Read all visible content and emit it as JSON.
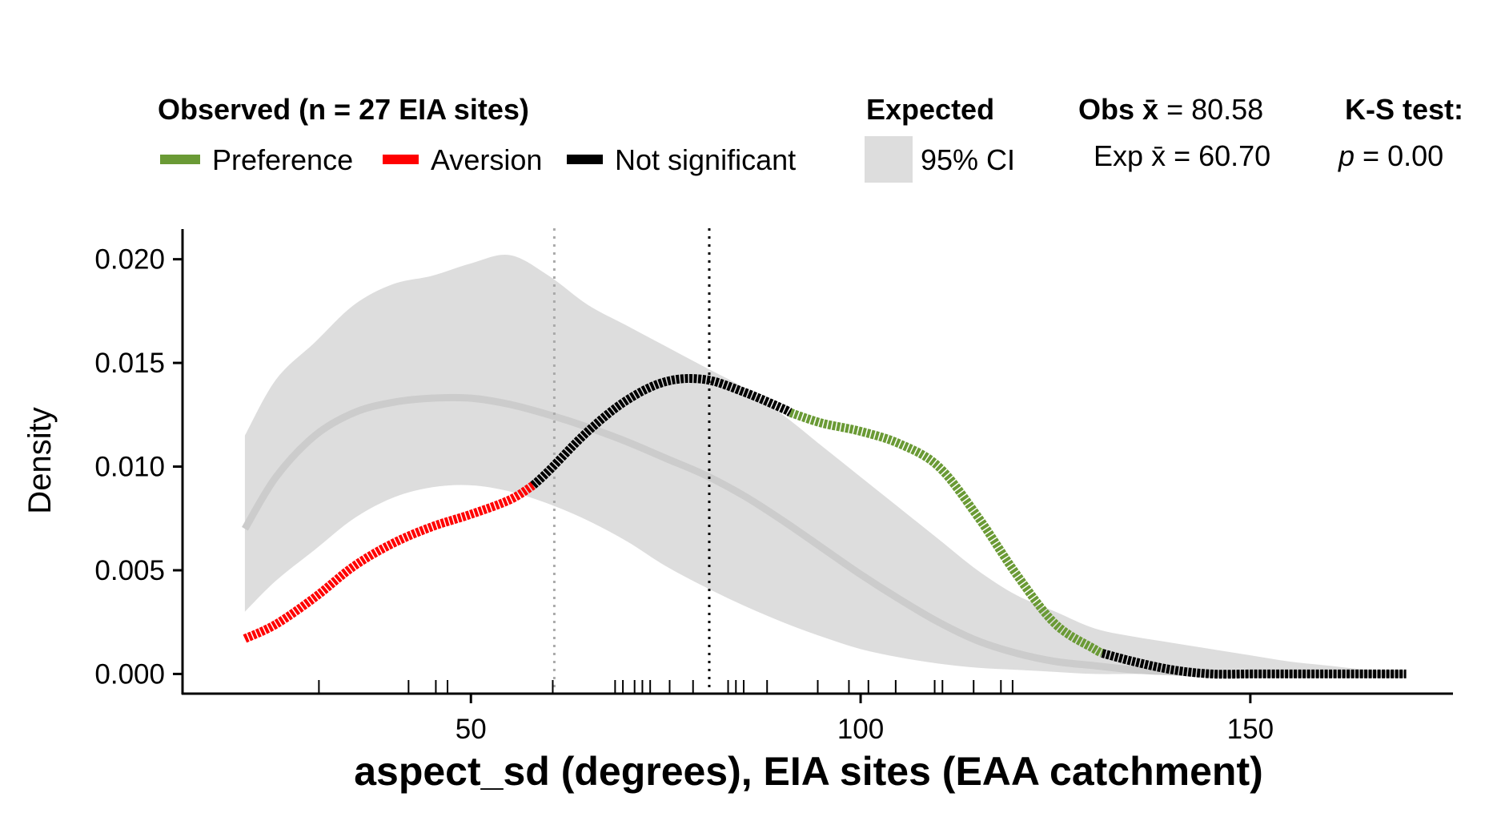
{
  "chart_data": {
    "type": "line",
    "xlabel": "aspect_sd (degrees), EIA sites (EAA catchment)",
    "ylabel": "Density",
    "xlim": [
      13,
      176
    ],
    "ylim": [
      -0.00095,
      0.0213
    ],
    "x_ticks": [
      {
        "value": 50,
        "label": "50"
      },
      {
        "value": 100,
        "label": "100"
      },
      {
        "value": 150,
        "label": "150"
      }
    ],
    "y_ticks": [
      {
        "value": 0.0,
        "label": "0.000"
      },
      {
        "value": 0.005,
        "label": "0.005"
      },
      {
        "value": 0.01,
        "label": "0.010"
      },
      {
        "value": 0.015,
        "label": "0.015"
      },
      {
        "value": 0.02,
        "label": "0.020"
      }
    ],
    "grid": false,
    "legend": {
      "placement": "top",
      "observed_title": "Observed (n = 27 EIA sites)",
      "observed_items": [
        {
          "label": "Preference",
          "color": "#6a9a35"
        },
        {
          "label": "Aversion",
          "color": "#ff0000"
        },
        {
          "label": "Not significant",
          "color": "#000000"
        }
      ],
      "expected_title": "Expected",
      "expected_item": {
        "label": "95% CI",
        "color": "#dddddd"
      },
      "obs_mean_label": "Obs",
      "obs_mean_value": "= 80.58",
      "exp_mean_label": "Exp",
      "exp_mean_value": "= 60.70",
      "xbar_symbol": "x̄",
      "ks_title": "K-S test:",
      "ks_p_symbol": "p",
      "ks_p_value": "= 0.00"
    },
    "mean_lines": {
      "observed": 80.58,
      "expected": 60.7,
      "observed_color": "#000000",
      "expected_color": "#aaaaaa"
    },
    "series": [
      {
        "role": "expected_ci",
        "color": "#dddddd",
        "x": [
          21,
          25,
          30,
          35,
          40,
          45,
          50,
          55,
          60,
          65,
          70,
          75,
          80,
          85,
          90,
          95,
          100,
          105,
          110,
          115,
          120,
          125,
          130,
          135,
          140,
          145,
          150,
          155,
          160,
          165,
          170
        ],
        "upper": [
          0.0115,
          0.0142,
          0.016,
          0.0178,
          0.0188,
          0.0192,
          0.0198,
          0.0202,
          0.0192,
          0.0178,
          0.0168,
          0.0158,
          0.0148,
          0.0138,
          0.0125,
          0.011,
          0.0095,
          0.008,
          0.0065,
          0.005,
          0.0038,
          0.003,
          0.0022,
          0.0018,
          0.0015,
          0.0012,
          0.0009,
          0.0006,
          0.0004,
          0.0002,
          0.0001
        ],
        "lower": [
          0.003,
          0.0045,
          0.006,
          0.0075,
          0.0085,
          0.009,
          0.0091,
          0.0088,
          0.0082,
          0.0074,
          0.0064,
          0.0052,
          0.0042,
          0.0033,
          0.0025,
          0.0018,
          0.0012,
          0.0008,
          0.0005,
          0.0003,
          0.0002,
          0.0001,
          0.0,
          0.0,
          0.0,
          0.0,
          0.0,
          0.0,
          0.0,
          0.0,
          0.0
        ]
      },
      {
        "role": "expected_mean",
        "color": "#cccccc",
        "x": [
          21,
          25,
          30,
          35,
          40,
          45,
          50,
          55,
          60,
          65,
          70,
          75,
          80,
          85,
          90,
          95,
          100,
          105,
          110,
          115,
          120,
          125,
          130,
          135,
          140,
          145,
          150,
          155,
          160,
          165,
          170
        ],
        "y": [
          0.007,
          0.0095,
          0.0115,
          0.0126,
          0.0131,
          0.0133,
          0.0133,
          0.013,
          0.0125,
          0.0119,
          0.0112,
          0.0104,
          0.0096,
          0.0086,
          0.0074,
          0.0061,
          0.0048,
          0.0036,
          0.0025,
          0.0016,
          0.001,
          0.0006,
          0.0004,
          0.0002,
          0.0001,
          0.0,
          0.0,
          0.0,
          0.0,
          0.0,
          0.0
        ]
      },
      {
        "role": "observed",
        "x": [
          21,
          25,
          30,
          35,
          40,
          45,
          50,
          55,
          58,
          60,
          65,
          70,
          75,
          80,
          85,
          90,
          91,
          95,
          100,
          105,
          110,
          115,
          120,
          125,
          130,
          131,
          135,
          140,
          145,
          150,
          155,
          160,
          165,
          170
        ],
        "y": [
          0.0017,
          0.0024,
          0.0037,
          0.0052,
          0.0063,
          0.0071,
          0.0077,
          0.0084,
          0.0091,
          0.0098,
          0.0117,
          0.0132,
          0.0141,
          0.0142,
          0.0136,
          0.0128,
          0.0126,
          0.0121,
          0.0117,
          0.0111,
          0.01,
          0.0076,
          0.0048,
          0.0024,
          0.0012,
          0.001,
          0.0006,
          0.0002,
          0.0,
          0.0,
          0.0,
          0.0,
          0.0,
          0.0
        ],
        "segments": [
          {
            "status": "aversion",
            "x_from": 21,
            "x_to": 58,
            "color": "#ff0000"
          },
          {
            "status": "not_significant",
            "x_from": 58,
            "x_to": 91,
            "color": "#000000"
          },
          {
            "status": "preference",
            "x_from": 91,
            "x_to": 131,
            "color": "#6a9a35"
          },
          {
            "status": "not_significant",
            "x_from": 131,
            "x_to": 170,
            "color": "#000000"
          }
        ]
      }
    ],
    "rug": [
      30.5,
      42,
      45.5,
      47,
      60.5,
      68.5,
      69.5,
      71,
      72,
      73,
      75.5,
      78.5,
      83,
      84,
      85,
      88,
      94.5,
      98.5,
      101,
      104.5,
      109.5,
      110.5,
      114.5,
      118,
      119.5
    ]
  }
}
